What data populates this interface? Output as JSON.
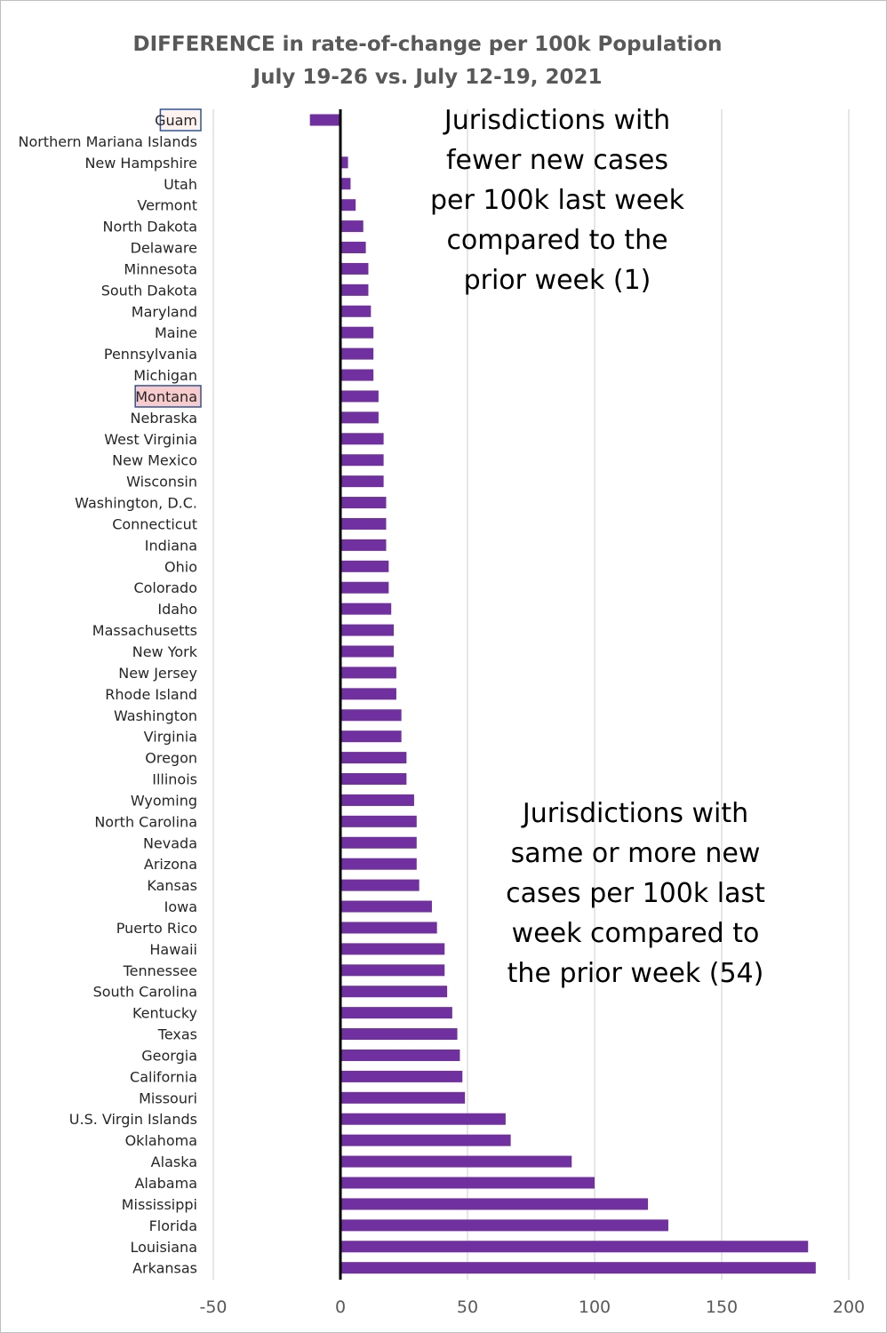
{
  "chart_data": {
    "type": "bar",
    "orientation": "horizontal",
    "title": "DIFFERENCE in rate-of-change per 100k Population",
    "subtitle": "July 19-26 vs. July 12-19, 2021",
    "xlabel": "",
    "ylabel": "",
    "xlim": [
      -50,
      200
    ],
    "xticks": [
      -50,
      0,
      50,
      100,
      150,
      200
    ],
    "grid": true,
    "bar_color": "#7030a0",
    "highlight_colors": {
      "Guam": "#fef2ef",
      "Montana": "#f8cbcc"
    },
    "highlight_border": "#2f5597",
    "categories": [
      "Guam",
      "Northern Mariana Islands",
      "New Hampshire",
      "Utah",
      "Vermont",
      "North Dakota",
      "Delaware",
      "Minnesota",
      "South Dakota",
      "Maryland",
      "Maine",
      "Pennsylvania",
      "Michigan",
      "Montana",
      "Nebraska",
      "West Virginia",
      "New Mexico",
      "Wisconsin",
      "Washington, D.C.",
      "Connecticut",
      "Indiana",
      "Ohio",
      "Colorado",
      "Idaho",
      "Massachusetts",
      "New York",
      "New Jersey",
      "Rhode Island",
      "Washington",
      "Virginia",
      "Oregon",
      "Illinois",
      "Wyoming",
      "North Carolina",
      "Nevada",
      "Arizona",
      "Kansas",
      "Iowa",
      "Puerto Rico",
      "Hawaii",
      "Tennessee",
      "South Carolina",
      "Kentucky",
      "Texas",
      "Georgia",
      "California",
      "Missouri",
      "U.S. Virgin Islands",
      "Oklahoma",
      "Alaska",
      "Alabama",
      "Mississippi",
      "Florida",
      "Louisiana",
      "Arkansas"
    ],
    "values": [
      -12,
      0,
      3,
      4,
      6,
      9,
      10,
      11,
      11,
      12,
      13,
      13,
      13,
      15,
      15,
      17,
      17,
      17,
      18,
      18,
      18,
      19,
      19,
      20,
      21,
      21,
      22,
      22,
      24,
      24,
      26,
      26,
      29,
      30,
      30,
      30,
      31,
      36,
      38,
      41,
      41,
      42,
      44,
      46,
      47,
      48,
      49,
      65,
      67,
      91,
      100,
      121,
      129,
      184,
      187
    ],
    "highlighted": [
      "Guam",
      "Montana"
    ],
    "annotations": [
      {
        "lines": [
          "Jurisdictions with",
          "fewer new cases",
          "per 100k last week",
          "compared to the",
          "prior week (1)"
        ]
      },
      {
        "lines": [
          "Jurisdictions with",
          "same or more new",
          "cases per 100k last",
          "week compared to",
          "the prior week (54)"
        ]
      }
    ]
  }
}
